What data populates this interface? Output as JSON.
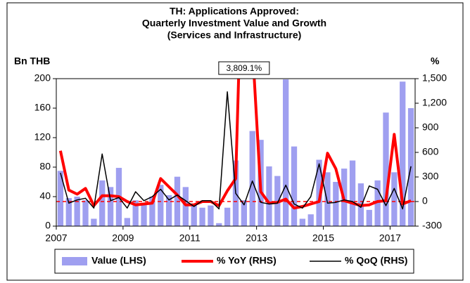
{
  "chart_data": {
    "type": "bar-line",
    "title": [
      "TH: Applications Approved:",
      "Quarterly Investment Value and Growth",
      "(Services and Infrastructure)"
    ],
    "y_label": "Bn THB",
    "y2_label": "%",
    "categories": [
      "2007",
      null,
      null,
      null,
      null,
      null,
      null,
      null,
      "2009",
      null,
      null,
      null,
      null,
      null,
      null,
      null,
      "2011",
      null,
      null,
      null,
      null,
      null,
      null,
      null,
      "2013",
      null,
      null,
      null,
      null,
      null,
      null,
      null,
      "2015",
      null,
      null,
      null,
      null,
      null,
      null,
      null,
      "2017",
      null,
      null
    ],
    "series": [
      {
        "name": "Value (LHS)",
        "type": "bar",
        "color": "#9f9ff0",
        "values": [
          75,
          38,
          40,
          35,
          10,
          62,
          53,
          79,
          11,
          35,
          30,
          40,
          56,
          42,
          67,
          53,
          30,
          25,
          28,
          4,
          25,
          89,
          35,
          129,
          117,
          81,
          68,
          199,
          108,
          10,
          16,
          90,
          73,
          60,
          78,
          89,
          58,
          22,
          62,
          154,
          73,
          196,
          160
        ]
      },
      {
        "name": "% YoY (RHS)",
        "type": "line",
        "axis": "y2",
        "color": "#ff0000",
        "width": 4,
        "values": [
          620,
          140,
          90,
          160,
          -50,
          70,
          70,
          60,
          0,
          -40,
          -30,
          -20,
          280,
          180,
          80,
          -40,
          -40,
          0,
          0,
          -50,
          130,
          280,
          3809.1,
          1900,
          120,
          -20,
          -10,
          30,
          -80,
          -60,
          -30,
          0,
          590,
          400,
          10,
          -20,
          -50,
          -40,
          0,
          10,
          820,
          -30,
          10
        ],
        "value_labels": [
          null,
          null,
          null,
          null,
          null,
          null,
          null,
          null,
          null,
          null,
          null,
          null,
          null,
          null,
          null,
          null,
          null,
          null,
          null,
          null,
          null,
          null,
          "3,809.1%",
          null,
          null,
          null,
          null,
          null,
          null,
          null,
          null,
          null,
          null,
          null,
          null,
          null,
          null,
          null,
          null,
          null,
          null,
          null,
          null
        ]
      },
      {
        "name": "% QoQ (RHS)",
        "type": "line",
        "axis": "y2",
        "color": "#000000",
        "width": 1.5,
        "values": [
          350,
          -20,
          20,
          40,
          -80,
          580,
          10,
          50,
          -80,
          120,
          10,
          60,
          150,
          20,
          80,
          10,
          -60,
          10,
          10,
          -90,
          1340,
          100,
          -40,
          250,
          -10,
          -30,
          -20,
          200,
          -30,
          -80,
          60,
          460,
          -20,
          -10,
          20,
          0,
          -70,
          190,
          150,
          -50,
          160,
          -90,
          430
        ]
      }
    ],
    "ylim": [
      0,
      200
    ],
    "yticks": [
      0,
      40,
      80,
      120,
      160,
      200
    ],
    "y2lim": [
      -300,
      1500
    ],
    "y2ticks": [
      -300,
      0,
      300,
      600,
      900,
      {
        "value": 1200,
        "label": "1,200"
      },
      {
        "value": 1500,
        "label": "1,500"
      }
    ],
    "zero_line": {
      "axis": "y2",
      "value": 0,
      "color": "#ff0000",
      "style": "dashed"
    },
    "legend": "bottom"
  }
}
